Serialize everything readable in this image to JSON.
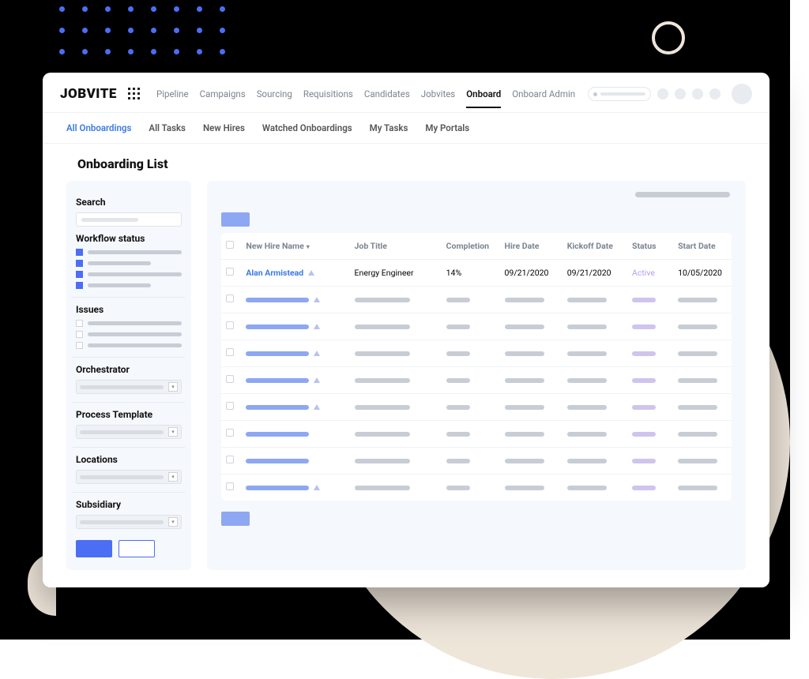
{
  "brand": "JOBVITE",
  "nav": {
    "items": [
      "Pipeline",
      "Campaigns",
      "Sourcing",
      "Requisitions",
      "Candidates",
      "Jobvites",
      "Onboard",
      "Onboard Admin"
    ],
    "active_index": 6
  },
  "tabs": {
    "items": [
      "All Onboardings",
      "All Tasks",
      "New Hires",
      "Watched Onboardings",
      "My Tasks",
      "My Portals"
    ],
    "active_index": 0
  },
  "page_title": "Onboarding List",
  "sidebar": {
    "search_label": "Search",
    "workflow_label": "Workflow status",
    "workflow_items": 4,
    "issues_label": "Issues",
    "issues_items": 3,
    "orchestrator_label": "Orchestrator",
    "process_template_label": "Process Template",
    "locations_label": "Locations",
    "subsidiary_label": "Subsidiary"
  },
  "table": {
    "columns": [
      "New Hire Name",
      "Job Title",
      "Completion",
      "Hire Date",
      "Kickoff Date",
      "Status",
      "Start Date"
    ],
    "row": {
      "name": "Alan Armistead",
      "job_title": "Energy Engineer",
      "completion": "14%",
      "hire_date": "09/21/2020",
      "kickoff_date": "09/21/2020",
      "status": "Active",
      "start_date": "10/05/2020"
    },
    "placeholder_rows": 8,
    "colors": {
      "link": "#3b7ae4",
      "placeholder_blue": "#8ea7f2",
      "placeholder_grey": "#c8cdd5",
      "placeholder_lavender": "#cfc4ee",
      "triangle": "#b8c3ea",
      "active_text": "#b49df0"
    },
    "bar_widths": {
      "name": 80,
      "job": 70,
      "comp": 30,
      "hire": 50,
      "kick": 50,
      "status": 30,
      "start": 50
    }
  },
  "decor": {
    "accent": "#4c6ef5",
    "beige": "#efe6da",
    "dot_grid": {
      "rows": 3,
      "cols": 8
    }
  }
}
